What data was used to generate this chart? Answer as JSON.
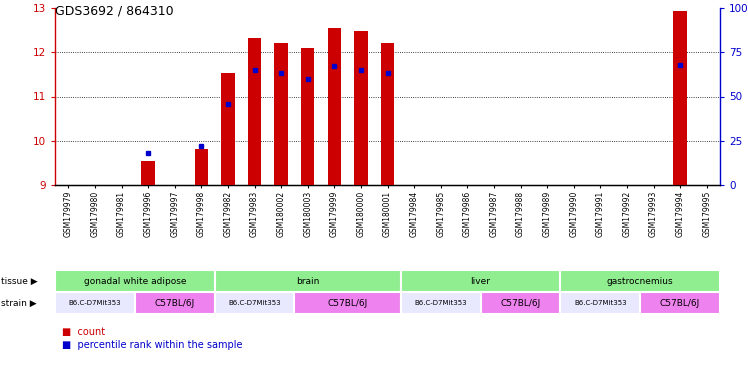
{
  "title": "GDS3692 / 864310",
  "samples": [
    "GSM179979",
    "GSM179980",
    "GSM179981",
    "GSM179996",
    "GSM179997",
    "GSM179998",
    "GSM179982",
    "GSM179983",
    "GSM180002",
    "GSM180003",
    "GSM179999",
    "GSM180000",
    "GSM180001",
    "GSM179984",
    "GSM179985",
    "GSM179986",
    "GSM179987",
    "GSM179988",
    "GSM179989",
    "GSM179990",
    "GSM179991",
    "GSM179992",
    "GSM179993",
    "GSM179994",
    "GSM179995"
  ],
  "count_values": [
    9.0,
    9.0,
    9.0,
    9.55,
    9.0,
    9.82,
    11.54,
    12.32,
    12.22,
    12.1,
    12.55,
    12.47,
    12.22,
    9.0,
    9.0,
    9.0,
    9.0,
    9.0,
    9.0,
    9.0,
    9.0,
    9.0,
    9.0,
    12.93,
    9.0
  ],
  "percentile_values": [
    null,
    null,
    null,
    18,
    null,
    22,
    46,
    65,
    63,
    60,
    67,
    65,
    63,
    null,
    null,
    null,
    null,
    null,
    null,
    null,
    null,
    null,
    null,
    68,
    null
  ],
  "ylim_left": [
    9,
    13
  ],
  "ylim_right": [
    0,
    100
  ],
  "yticks_left": [
    9,
    10,
    11,
    12,
    13
  ],
  "yticks_right": [
    0,
    25,
    50,
    75,
    100
  ],
  "tissue_groups": [
    {
      "label": "gonadal white adipose",
      "start": 0,
      "end": 6,
      "color": "#90EE90"
    },
    {
      "label": "brain",
      "start": 6,
      "end": 13,
      "color": "#90EE90"
    },
    {
      "label": "liver",
      "start": 13,
      "end": 19,
      "color": "#90EE90"
    },
    {
      "label": "gastrocnemius",
      "start": 19,
      "end": 25,
      "color": "#90EE90"
    }
  ],
  "strain_groups": [
    {
      "label": "B6.C-D7Mit353",
      "start": 0,
      "end": 3,
      "color": "#E8E8FF"
    },
    {
      "label": "C57BL/6J",
      "start": 3,
      "end": 6,
      "color": "#EE82EE"
    },
    {
      "label": "B6.C-D7Mit353",
      "start": 6,
      "end": 9,
      "color": "#E8E8FF"
    },
    {
      "label": "C57BL/6J",
      "start": 9,
      "end": 13,
      "color": "#EE82EE"
    },
    {
      "label": "B6.C-D7Mit353",
      "start": 13,
      "end": 16,
      "color": "#E8E8FF"
    },
    {
      "label": "C57BL/6J",
      "start": 16,
      "end": 19,
      "color": "#EE82EE"
    },
    {
      "label": "B6.C-D7Mit353",
      "start": 19,
      "end": 22,
      "color": "#E8E8FF"
    },
    {
      "label": "C57BL/6J",
      "start": 22,
      "end": 25,
      "color": "#EE82EE"
    }
  ],
  "bar_color": "#CC0000",
  "dot_color": "#0000CC",
  "baseline": 9.0,
  "left_axis_color": "#CC0000",
  "right_axis_color": "#0000CC",
  "bar_width": 0.5
}
